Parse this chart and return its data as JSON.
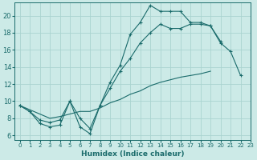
{
  "background_color": "#cceae7",
  "grid_color": "#aad4d0",
  "line_color": "#1a6b6b",
  "xlabel": "Humidex (Indice chaleur)",
  "xlim": [
    -0.5,
    23
  ],
  "ylim": [
    5.5,
    21.5
  ],
  "yticks": [
    6,
    8,
    10,
    12,
    14,
    16,
    18,
    20
  ],
  "xticks": [
    0,
    1,
    2,
    3,
    4,
    5,
    6,
    7,
    8,
    9,
    10,
    11,
    12,
    13,
    14,
    15,
    16,
    17,
    18,
    19,
    20,
    21,
    22,
    23
  ],
  "line1_x": [
    0,
    1,
    2,
    3,
    4,
    5,
    6,
    7,
    8,
    9,
    10,
    11,
    12,
    13,
    14,
    15,
    16,
    17,
    18,
    19,
    20,
    21,
    22
  ],
  "line1_y": [
    9.5,
    8.8,
    7.4,
    7.0,
    7.2,
    10.0,
    7.0,
    6.2,
    9.5,
    12.2,
    14.2,
    17.8,
    19.2,
    21.2,
    20.5,
    20.5,
    20.5,
    19.2,
    19.2,
    18.8,
    16.8,
    15.8,
    13.0
  ],
  "line2_x": [
    0,
    1,
    2,
    3,
    4,
    5,
    6,
    7,
    8,
    9,
    10,
    11,
    12,
    13,
    14,
    15,
    16,
    17,
    18,
    19,
    20,
    21,
    22,
    23
  ],
  "line2_y": [
    9.5,
    8.8,
    7.8,
    7.5,
    7.8,
    10.0,
    8.0,
    6.8,
    9.5,
    11.5,
    13.5,
    15.0,
    16.8,
    18.0,
    19.0,
    18.5,
    18.5,
    19.0,
    19.0,
    18.8,
    17.0,
    null,
    null,
    null
  ],
  "line3_x": [
    0,
    1,
    2,
    3,
    4,
    5,
    6,
    7,
    8,
    9,
    10,
    11,
    12,
    13,
    14,
    15,
    16,
    17,
    18,
    19,
    20,
    21,
    22,
    23
  ],
  "line3_y": [
    9.5,
    9.0,
    8.5,
    8.0,
    8.2,
    8.5,
    8.8,
    8.8,
    9.2,
    9.8,
    10.2,
    10.8,
    11.2,
    11.8,
    12.2,
    12.5,
    12.8,
    13.0,
    13.2,
    13.5,
    null,
    null,
    null,
    null
  ]
}
